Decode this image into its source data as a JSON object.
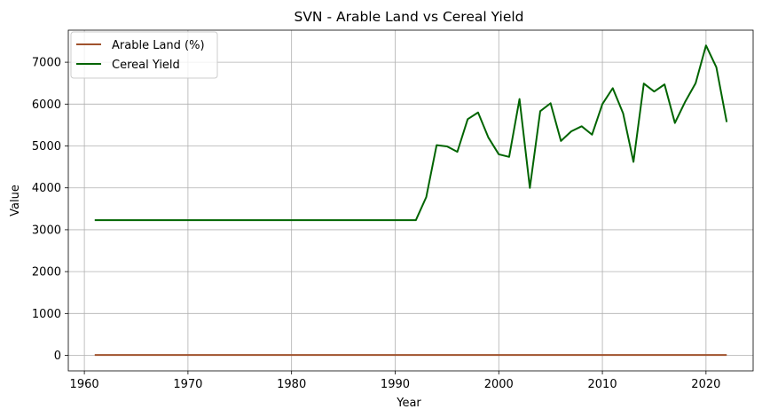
{
  "chart_data": {
    "type": "line",
    "title": "SVN - Arable Land vs Cereal Yield",
    "xlabel": "Year",
    "ylabel": "Value",
    "xlim": [
      1958.45,
      2024.55
    ],
    "ylim": [
      -370,
      7765
    ],
    "x_ticks": [
      1960,
      1970,
      1980,
      1990,
      2000,
      2010,
      2020
    ],
    "y_ticks": [
      0,
      1000,
      2000,
      3000,
      4000,
      5000,
      6000,
      7000
    ],
    "grid": true,
    "legend_position": "top-left",
    "series": [
      {
        "name": "Arable Land (%)",
        "color": "#a0522d",
        "x": [
          1961,
          1965,
          1970,
          1975,
          1980,
          1985,
          1990,
          1992,
          1995,
          2000,
          2005,
          2010,
          2015,
          2020,
          2022
        ],
        "values": [
          9,
          9,
          9,
          9,
          9,
          9,
          9,
          9,
          9,
          9,
          8.5,
          8.7,
          8.7,
          8.6,
          8.6
        ]
      },
      {
        "name": "Cereal Yield",
        "color": "#006400",
        "x": [
          1961,
          1962,
          1963,
          1964,
          1965,
          1966,
          1967,
          1968,
          1969,
          1970,
          1971,
          1972,
          1973,
          1974,
          1975,
          1976,
          1977,
          1978,
          1979,
          1980,
          1981,
          1982,
          1983,
          1984,
          1985,
          1986,
          1987,
          1988,
          1989,
          1990,
          1991,
          1992,
          1993,
          1994,
          1995,
          1996,
          1997,
          1998,
          1999,
          2000,
          2001,
          2002,
          2003,
          2004,
          2005,
          2006,
          2007,
          2008,
          2009,
          2010,
          2011,
          2012,
          2013,
          2014,
          2015,
          2016,
          2017,
          2018,
          2019,
          2020,
          2021,
          2022
        ],
        "values": [
          3230,
          3230,
          3230,
          3230,
          3230,
          3230,
          3230,
          3230,
          3230,
          3230,
          3230,
          3230,
          3230,
          3230,
          3230,
          3230,
          3230,
          3230,
          3230,
          3230,
          3230,
          3230,
          3230,
          3230,
          3230,
          3230,
          3230,
          3230,
          3230,
          3230,
          3230,
          3230,
          3780,
          5020,
          4990,
          4860,
          5640,
          5800,
          5200,
          4800,
          4740,
          6120,
          4000,
          5830,
          6020,
          5120,
          5350,
          5470,
          5270,
          6000,
          6380,
          5780,
          4620,
          6490,
          6300,
          6470,
          5550,
          6060,
          6500,
          7400,
          6880,
          5570
        ]
      }
    ]
  }
}
